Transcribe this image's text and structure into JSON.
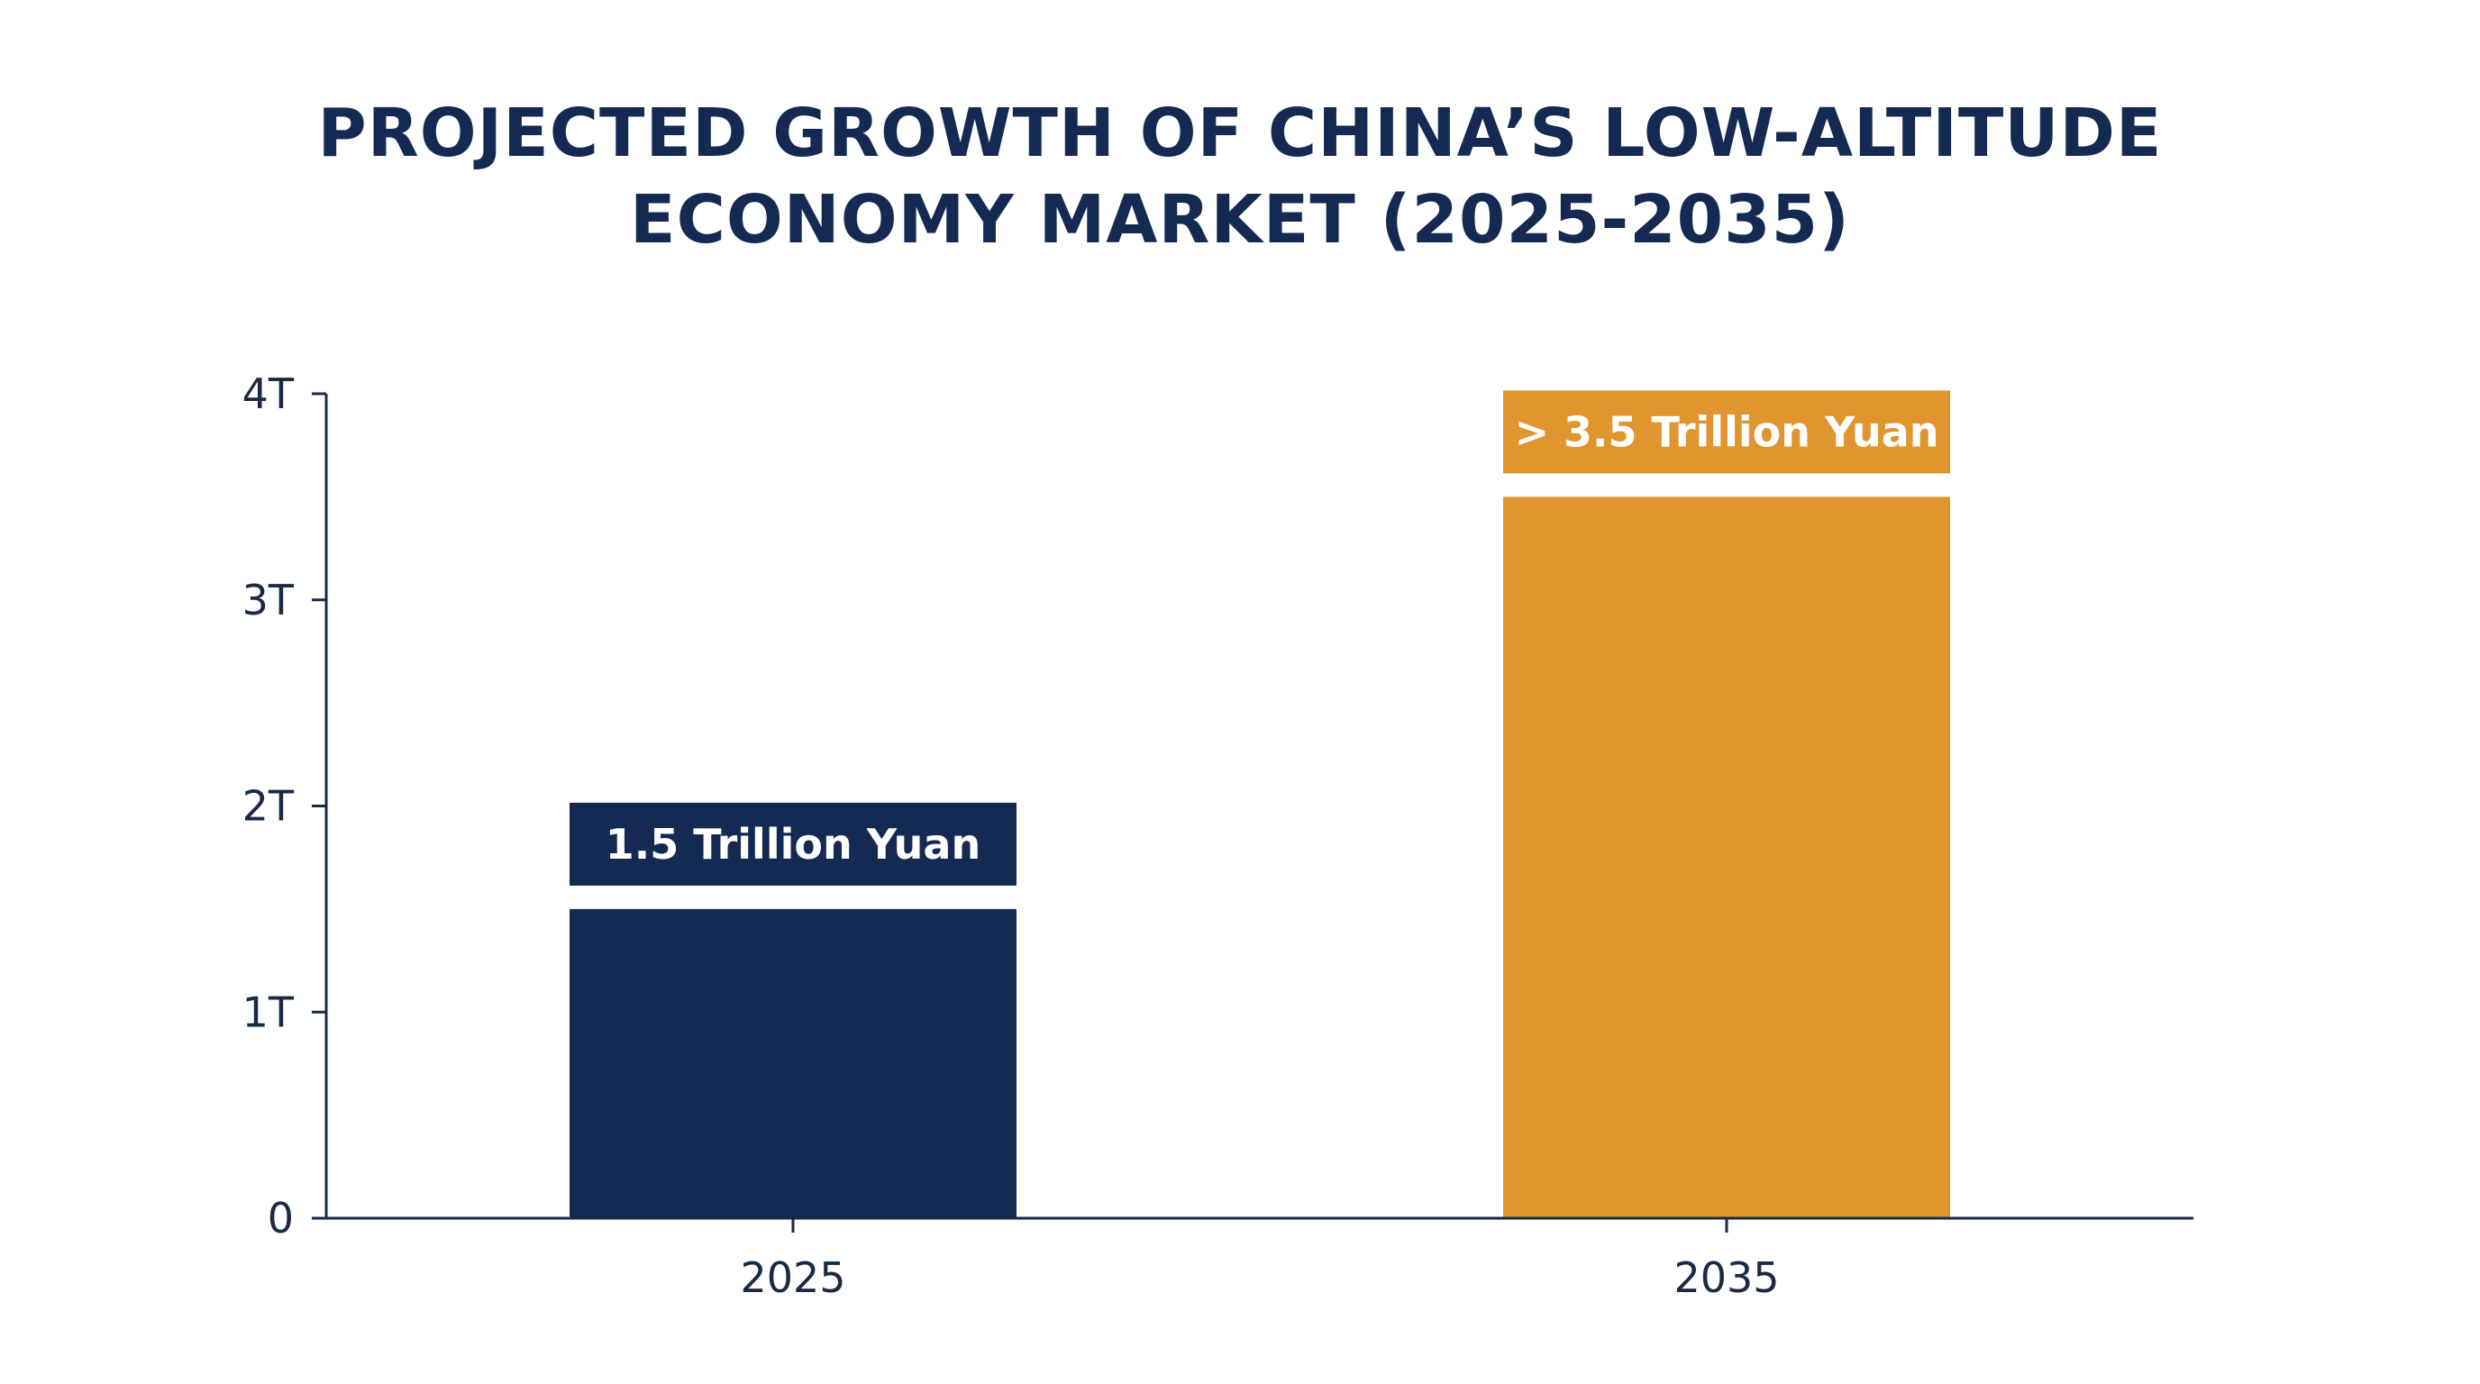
{
  "colors": {
    "title": "#152a52",
    "axis": "#1b2a44",
    "bar_2025": "#152a52",
    "bar_2035": "#e0952f",
    "background": "#ffffff"
  },
  "chart_data": {
    "type": "bar",
    "title": "PROJECTED GROWTH OF CHINA’S LOW-ALTITUDE ECONOMY MARKET (2025-2035)",
    "title_lines": [
      "PROJECTED GROWTH OF CHINA’S LOW-ALTITUDE",
      "ECONOMY MARKET (2025-2035)"
    ],
    "xlabel": "",
    "ylabel": "",
    "categories": [
      "2025",
      "2035"
    ],
    "values": [
      1.5,
      3.5
    ],
    "data_labels": [
      "1.5 Trillion Yuan",
      "> 3.5 Trillion Yuan"
    ],
    "bar_colors": [
      "#152a52",
      "#e0952f"
    ],
    "ylim": [
      0,
      4
    ],
    "yticks": [
      0,
      1,
      2,
      3,
      4
    ],
    "ytick_labels": [
      "0",
      "1T",
      "2T",
      "3T",
      "4T"
    ],
    "grid": false,
    "legend": "none"
  }
}
